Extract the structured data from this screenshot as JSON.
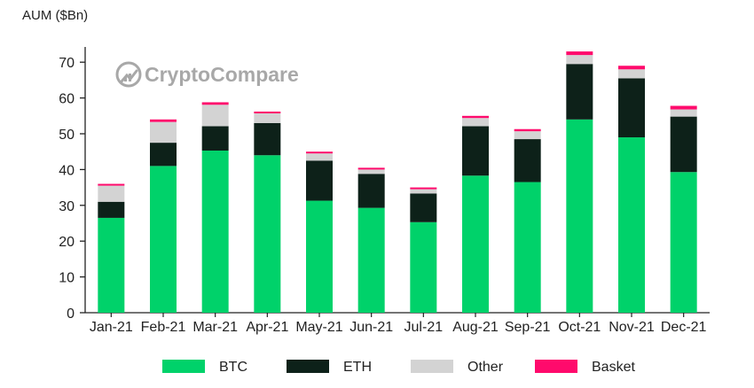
{
  "chart_data": {
    "type": "bar",
    "stacked": true,
    "title": "",
    "ylabel": "AUM ($Bn)",
    "xlabel": "",
    "ylim": [
      0,
      75
    ],
    "yticks": [
      0,
      10,
      20,
      30,
      40,
      50,
      60,
      70
    ],
    "grid": false,
    "legend_position": "bottom",
    "categories": [
      "Jan-21",
      "Feb-21",
      "Mar-21",
      "Apr-21",
      "May-21",
      "Jun-21",
      "Jul-21",
      "Aug-21",
      "Sep-21",
      "Oct-21",
      "Nov-21",
      "Dec-21"
    ],
    "series": [
      {
        "name": "BTC",
        "color": "#00d26a",
        "values": [
          26.5,
          41.0,
          45.3,
          44.0,
          31.3,
          29.3,
          25.3,
          38.3,
          36.5,
          54.0,
          49.0,
          39.3
        ]
      },
      {
        "name": "ETH",
        "color": "#0d2119",
        "values": [
          4.5,
          6.5,
          6.8,
          9.0,
          11.2,
          9.5,
          8.0,
          13.8,
          12.0,
          15.5,
          16.5,
          15.5
        ]
      },
      {
        "name": "Other",
        "color": "#d3d3d3",
        "values": [
          4.5,
          5.8,
          6.0,
          2.7,
          2.0,
          1.2,
          1.2,
          2.3,
          2.2,
          2.5,
          2.5,
          2.0
        ]
      },
      {
        "name": "Basket",
        "color": "#ff0a6c",
        "values": [
          0.5,
          0.7,
          0.7,
          0.5,
          0.5,
          0.5,
          0.5,
          0.6,
          0.6,
          1.0,
          1.0,
          1.0
        ]
      }
    ]
  },
  "watermark": {
    "text": "CryptoCompare",
    "icon": "cryptocompare-logo-icon"
  },
  "colors": {
    "axis": "#222222",
    "logo": "#9a9a9a"
  }
}
